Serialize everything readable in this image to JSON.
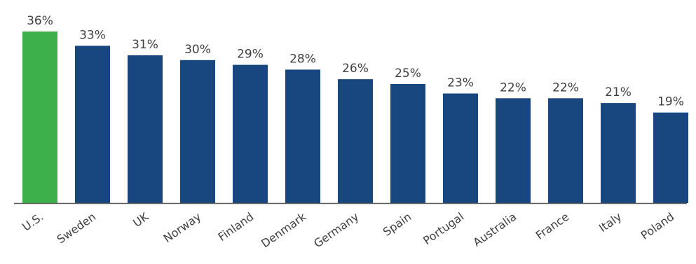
{
  "chart_data": {
    "type": "bar",
    "categories": [
      "U.S.",
      "Sweden",
      "UK",
      "Norway",
      "Finland",
      "Denmark",
      "Germany",
      "Spain",
      "Portugal",
      "Australia",
      "France",
      "Italy",
      "Poland"
    ],
    "values": [
      36,
      33,
      31,
      30,
      29,
      28,
      26,
      25,
      23,
      22,
      22,
      21,
      19
    ],
    "value_labels": [
      "36%",
      "33%",
      "31%",
      "30%",
      "29%",
      "28%",
      "26%",
      "25%",
      "23%",
      "22%",
      "22%",
      "21%",
      "19%"
    ],
    "title": "",
    "xlabel": "",
    "ylabel": "",
    "ylim": [
      0,
      36
    ],
    "grid": false,
    "legend": "none",
    "highlight_category": "U.S.",
    "colors": {
      "highlight": "#3EB049",
      "default": "#17477E",
      "axis": "#595959",
      "text": "#404040"
    }
  }
}
